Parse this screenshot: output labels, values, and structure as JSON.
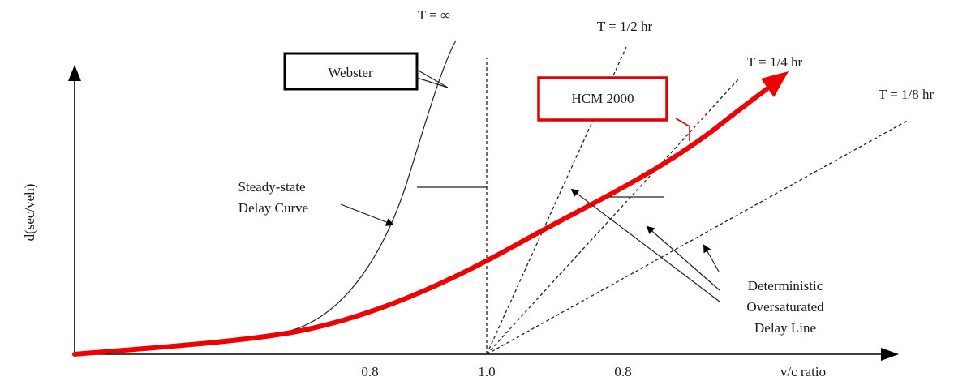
{
  "diagram": {
    "ylabel": "d(sec/veh)",
    "xlabel": "v/c ratio",
    "x_ticks": [
      "0.8",
      "1.0",
      "0.8"
    ],
    "horizon_labels": {
      "infinite": "T = ∞",
      "half": "T = 1/2 hr",
      "quarter": "T = 1/4 hr",
      "eighth": "T = 1/8 hr"
    },
    "boxes": {
      "webster": "Webster",
      "hcm": "HCM 2000"
    },
    "steady_state_label": [
      "Steady-state",
      "Delay Curve"
    ],
    "deterministic_label": [
      "Deterministic",
      "Oversaturated",
      "Delay Line"
    ],
    "colors": {
      "hcm_curve": "#ee0000",
      "box_hcm": "#e00000",
      "lines": "#000000"
    }
  }
}
